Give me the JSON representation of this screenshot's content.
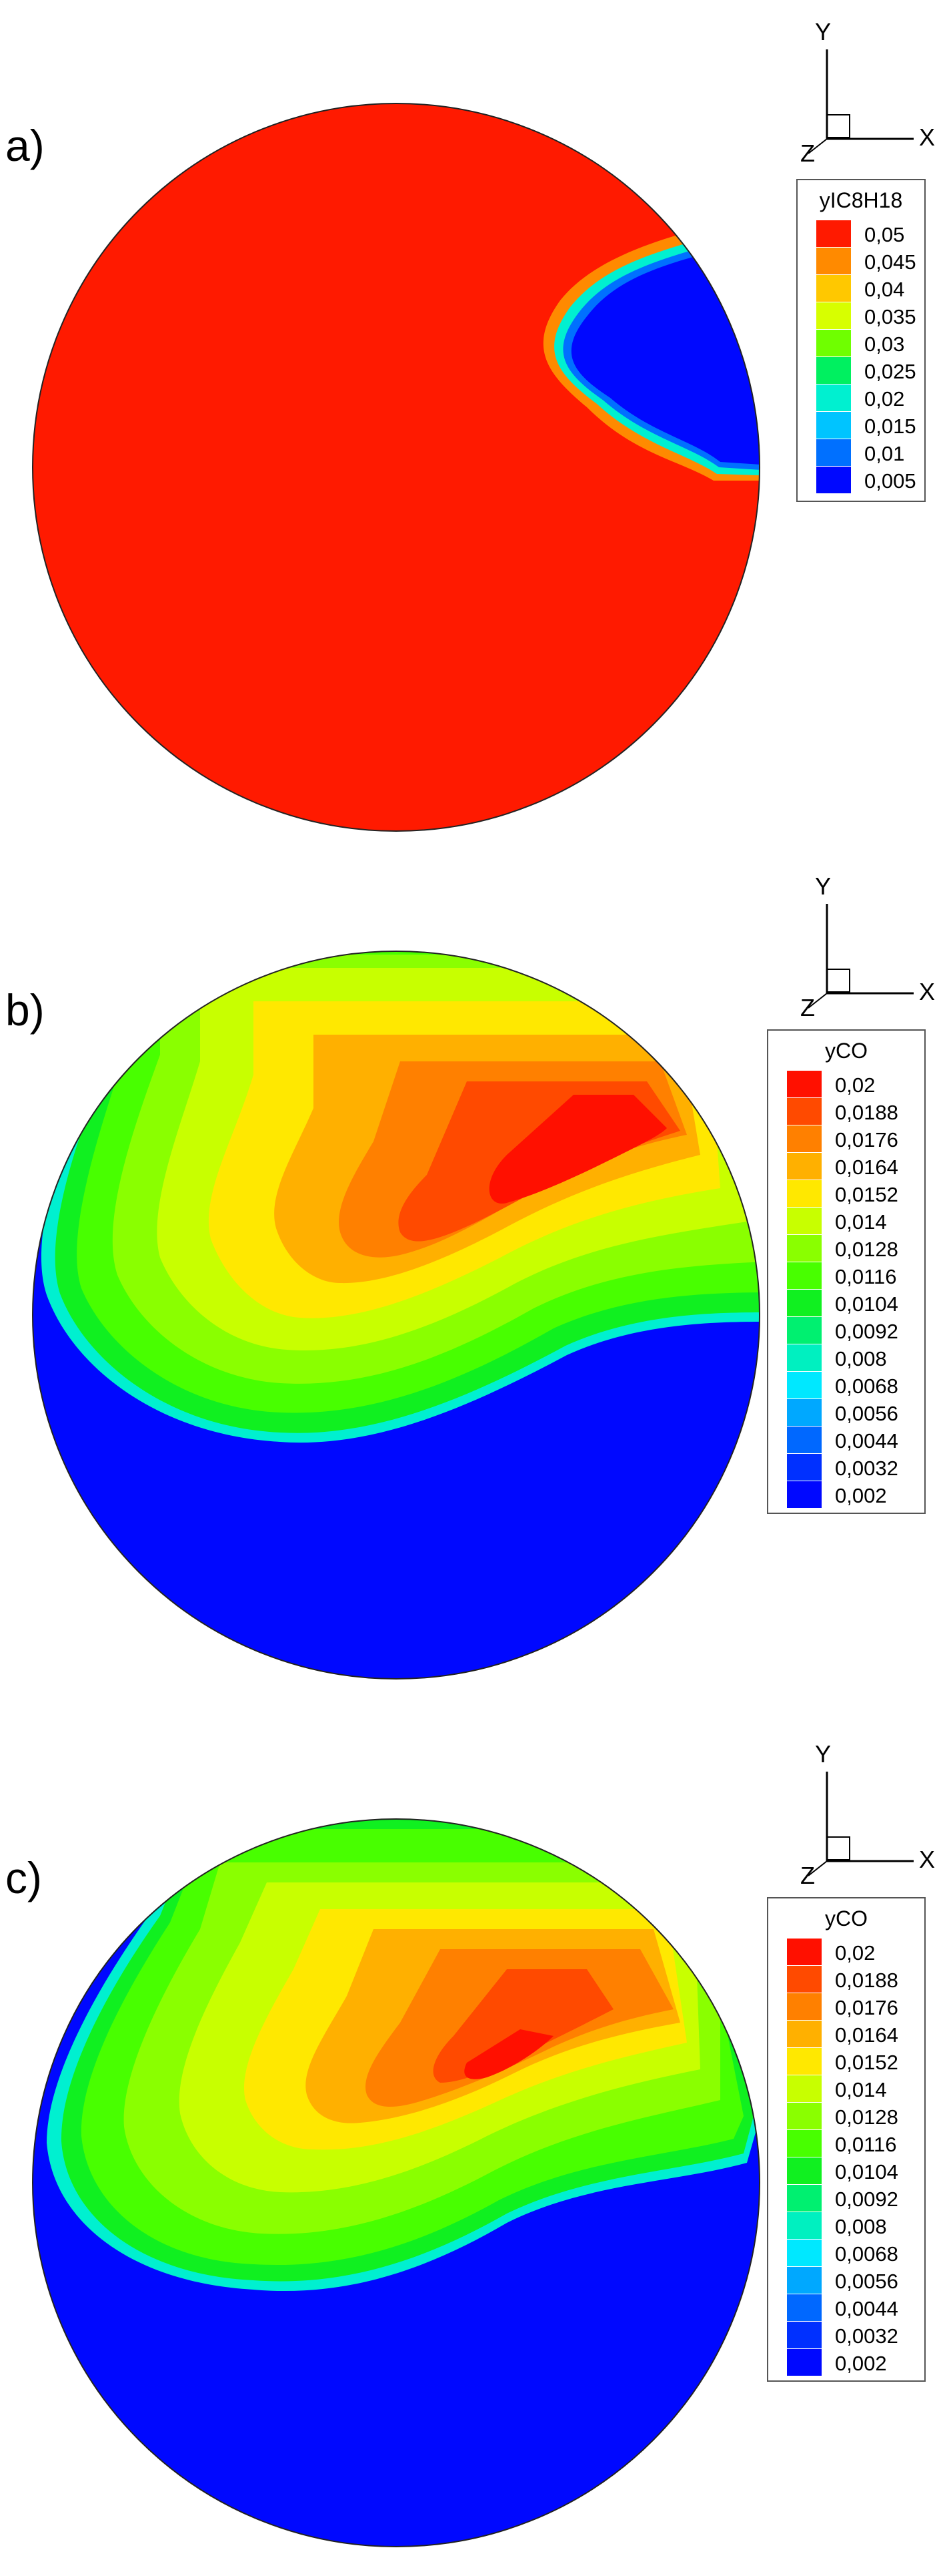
{
  "panels": [
    {
      "label": "a)",
      "legend": {
        "title": "yIC8H18",
        "entries": [
          {
            "value": "0,05",
            "color": "#ff1a00"
          },
          {
            "value": "0,045",
            "color": "#ff8a00"
          },
          {
            "value": "0,04",
            "color": "#ffc800"
          },
          {
            "value": "0,035",
            "color": "#d7ff00"
          },
          {
            "value": "0,03",
            "color": "#6fff00"
          },
          {
            "value": "0,025",
            "color": "#00f060"
          },
          {
            "value": "0,02",
            "color": "#00f0d0"
          },
          {
            "value": "0,015",
            "color": "#00c4ff"
          },
          {
            "value": "0,01",
            "color": "#0070ff"
          },
          {
            "value": "0,005",
            "color": "#0008ff"
          }
        ]
      },
      "axes": {
        "y": "Y",
        "x": "X",
        "z": "Z"
      }
    },
    {
      "label": "b)",
      "legend": {
        "title": "yCO",
        "entries": [
          {
            "value": "0,02",
            "color": "#ff1000"
          },
          {
            "value": "0,0188",
            "color": "#ff4a00"
          },
          {
            "value": "0,0176",
            "color": "#ff8000"
          },
          {
            "value": "0,0164",
            "color": "#ffb000"
          },
          {
            "value": "0,0152",
            "color": "#ffe800"
          },
          {
            "value": "0,014",
            "color": "#c8ff00"
          },
          {
            "value": "0,0128",
            "color": "#8aff00"
          },
          {
            "value": "0,0116",
            "color": "#48ff00"
          },
          {
            "value": "0,0104",
            "color": "#10f020"
          },
          {
            "value": "0,0092",
            "color": "#00f070"
          },
          {
            "value": "0,008",
            "color": "#00f0c0"
          },
          {
            "value": "0,0068",
            "color": "#00e8ff"
          },
          {
            "value": "0,0056",
            "color": "#00a8ff"
          },
          {
            "value": "0,0044",
            "color": "#0068ff"
          },
          {
            "value": "0,0032",
            "color": "#0030ff"
          },
          {
            "value": "0,002",
            "color": "#0008ff"
          }
        ]
      },
      "axes": {
        "y": "Y",
        "x": "X",
        "z": "Z"
      }
    },
    {
      "label": "c)",
      "legend": {
        "title": "yCO",
        "entries": [
          {
            "value": "0,02",
            "color": "#ff1000"
          },
          {
            "value": "0,0188",
            "color": "#ff4a00"
          },
          {
            "value": "0,0176",
            "color": "#ff8000"
          },
          {
            "value": "0,0164",
            "color": "#ffb000"
          },
          {
            "value": "0,0152",
            "color": "#ffe800"
          },
          {
            "value": "0,014",
            "color": "#c8ff00"
          },
          {
            "value": "0,0128",
            "color": "#8aff00"
          },
          {
            "value": "0,0116",
            "color": "#48ff00"
          },
          {
            "value": "0,0104",
            "color": "#10f020"
          },
          {
            "value": "0,0092",
            "color": "#00f070"
          },
          {
            "value": "0,008",
            "color": "#00f0c0"
          },
          {
            "value": "0,0068",
            "color": "#00e8ff"
          },
          {
            "value": "0,0056",
            "color": "#00a8ff"
          },
          {
            "value": "0,0044",
            "color": "#0068ff"
          },
          {
            "value": "0,0032",
            "color": "#0030ff"
          },
          {
            "value": "0,002",
            "color": "#0008ff"
          }
        ]
      },
      "axes": {
        "y": "Y",
        "x": "X",
        "z": "Z"
      }
    }
  ]
}
